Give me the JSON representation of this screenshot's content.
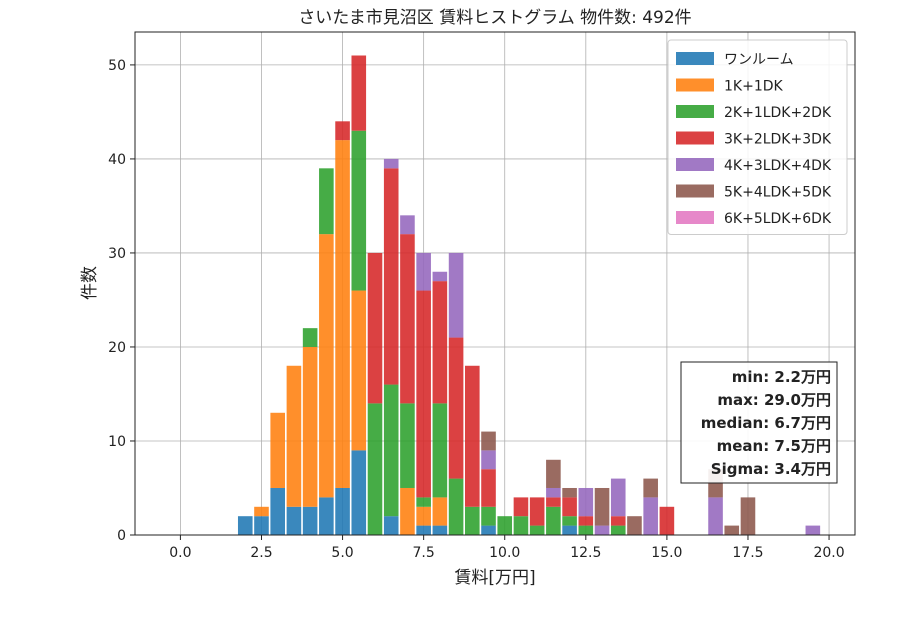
{
  "chart_data": {
    "type": "bar",
    "subtype": "stacked-histogram",
    "title": "さいたま市見沼区 賃料ヒストグラム 物件数: 492件",
    "xlabel": "賃料[万円]",
    "ylabel": "件数",
    "xlim": [
      -1.4,
      20.8
    ],
    "ylim": [
      0,
      53.5
    ],
    "xticks": [
      0.0,
      2.5,
      5.0,
      7.5,
      10.0,
      12.5,
      15.0,
      17.5,
      20.0
    ],
    "xtick_labels": [
      "0.0",
      "2.5",
      "5.0",
      "7.5",
      "10.0",
      "12.5",
      "15.0",
      "17.5",
      "20.0"
    ],
    "yticks": [
      0,
      10,
      20,
      30,
      40,
      50
    ],
    "ytick_labels": [
      "0",
      "10",
      "20",
      "30",
      "40",
      "50"
    ],
    "grid": true,
    "legend_position": "top-right",
    "bin_width": 0.5,
    "x": [
      2.0,
      2.5,
      3.0,
      3.5,
      4.0,
      4.5,
      5.0,
      5.5,
      6.0,
      6.5,
      7.0,
      7.5,
      8.0,
      8.5,
      9.0,
      9.5,
      10.0,
      10.5,
      11.0,
      11.5,
      12.0,
      12.5,
      13.0,
      13.5,
      14.0,
      14.5,
      15.0,
      15.5,
      16.0,
      16.5,
      17.0,
      17.5,
      18.0,
      18.5,
      19.0,
      19.5
    ],
    "series": [
      {
        "name": "ワンルーム",
        "color": "#1f77b4",
        "values": [
          2,
          2,
          5,
          3,
          3,
          4,
          5,
          9,
          0,
          2,
          0,
          1,
          1,
          0,
          0,
          1,
          0,
          0,
          0,
          0,
          1,
          0,
          0,
          0,
          0,
          0,
          0,
          0,
          0,
          0,
          0,
          0,
          0,
          0,
          0,
          0
        ]
      },
      {
        "name": "1K+1DK",
        "color": "#ff7f0e",
        "values": [
          0,
          1,
          8,
          15,
          17,
          28,
          37,
          17,
          0,
          0,
          5,
          2,
          3,
          0,
          0,
          0,
          0,
          0,
          0,
          0,
          0,
          0,
          0,
          0,
          0,
          0,
          0,
          0,
          0,
          0,
          0,
          0,
          0,
          0,
          0,
          0
        ]
      },
      {
        "name": "2K+1LDK+2DK",
        "color": "#2ca02c",
        "values": [
          0,
          0,
          0,
          0,
          2,
          7,
          0,
          17,
          14,
          14,
          9,
          1,
          10,
          6,
          3,
          2,
          2,
          2,
          1,
          3,
          1,
          1,
          0,
          1,
          0,
          0,
          0,
          0,
          0,
          0,
          0,
          0,
          0,
          0,
          0,
          0
        ]
      },
      {
        "name": "3K+2LDK+3DK",
        "color": "#d62728",
        "values": [
          0,
          0,
          0,
          0,
          0,
          0,
          2,
          8,
          16,
          23,
          18,
          22,
          13,
          15,
          15,
          4,
          0,
          2,
          3,
          1,
          2,
          1,
          0,
          1,
          0,
          0,
          3,
          0,
          0,
          0,
          0,
          0,
          0,
          0,
          0,
          0
        ]
      },
      {
        "name": "4K+3LDK+4DK",
        "color": "#9467bd",
        "values": [
          0,
          0,
          0,
          0,
          0,
          0,
          0,
          0,
          0,
          1,
          2,
          4,
          1,
          9,
          0,
          2,
          0,
          0,
          0,
          1,
          0,
          3,
          1,
          4,
          0,
          4,
          0,
          0,
          0,
          4,
          0,
          0,
          0,
          0,
          0,
          1
        ]
      },
      {
        "name": "5K+4LDK+5DK",
        "color": "#8c564b",
        "values": [
          0,
          0,
          0,
          0,
          0,
          0,
          0,
          0,
          0,
          0,
          0,
          0,
          0,
          0,
          0,
          2,
          0,
          0,
          0,
          3,
          1,
          0,
          4,
          0,
          2,
          2,
          0,
          0,
          0,
          3,
          1,
          4,
          0,
          0,
          0,
          0
        ]
      },
      {
        "name": "6K+5LDK+6DK",
        "color": "#e377c2",
        "values": [
          0,
          0,
          0,
          0,
          0,
          0,
          0,
          0,
          0,
          0,
          0,
          0,
          0,
          0,
          0,
          0,
          0,
          0,
          0,
          0,
          0,
          0,
          0,
          0,
          0,
          0,
          0,
          0,
          0,
          0,
          0,
          0,
          0,
          0,
          0,
          0
        ]
      }
    ],
    "stats": [
      "min: 2.2万円",
      "max: 29.0万円",
      "median: 6.7万円",
      "mean: 7.5万円",
      "Sigma: 3.4万円"
    ]
  }
}
